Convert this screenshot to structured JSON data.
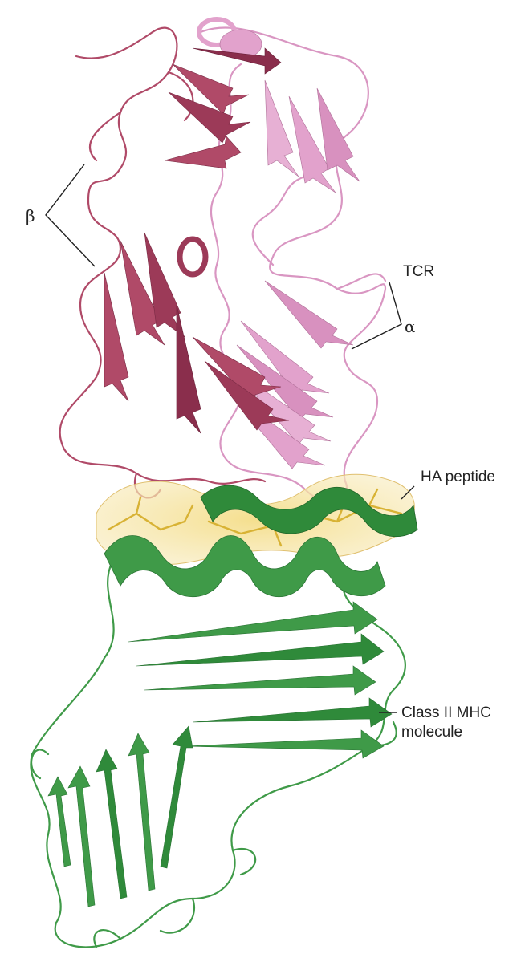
{
  "labels": {
    "beta": "β",
    "alpha": "α",
    "tcr": "TCR",
    "ha_peptide": "HA peptide",
    "mhc_line1": "Class II MHC",
    "mhc_line2": "molecule"
  },
  "colors": {
    "beta_chain": "#b04a68",
    "beta_chain_dark": "#8a2e4c",
    "alpha_chain": "#e2a2cc",
    "alpha_chain_dark": "#c07aa8",
    "mhc": "#3f9a48",
    "mhc_dark": "#2a7434",
    "peptide": "#e9c65a",
    "peptide_surface": "#f6e6a8",
    "text": "#222222"
  }
}
